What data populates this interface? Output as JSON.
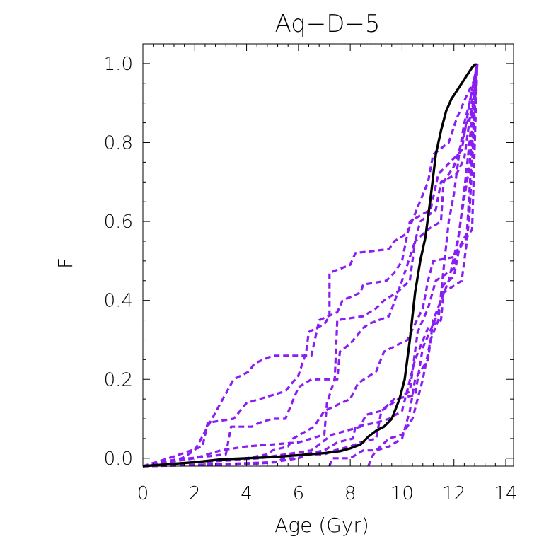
{
  "chart_data": {
    "type": "line",
    "title": "Aq−D−5",
    "xlabel": "Age (Gyr)",
    "ylabel": "F",
    "xlim": [
      0,
      14.3
    ],
    "ylim": [
      -0.02,
      1.05
    ],
    "xticks": [
      0,
      2,
      4,
      6,
      8,
      10,
      12,
      14
    ],
    "xtick_labels": [
      "0",
      "2",
      "4",
      "6",
      "8",
      "10",
      "12",
      "14"
    ],
    "yticks": [
      0.0,
      0.2,
      0.4,
      0.6,
      0.8,
      1.0
    ],
    "ytick_labels": [
      "0.0",
      "0.2",
      "0.4",
      "0.6",
      "0.8",
      "1.0"
    ],
    "grid": false,
    "colors": {
      "main": "#000000",
      "dashed": "#8a1ef2"
    },
    "series": [
      {
        "name": "main",
        "style": "solid",
        "x": [
          0.0,
          1.0,
          2.0,
          3.0,
          4.0,
          5.0,
          6.0,
          7.0,
          7.6,
          8.0,
          8.4,
          8.7,
          9.0,
          9.3,
          9.6,
          9.9,
          10.1,
          10.3,
          10.5,
          10.7,
          10.9,
          11.1,
          11.3,
          11.5,
          11.7,
          11.9,
          12.1,
          12.3,
          12.5,
          12.7,
          12.85
        ],
        "y": [
          -0.02,
          -0.015,
          -0.01,
          -0.003,
          0.0,
          0.003,
          0.008,
          0.013,
          0.018,
          0.025,
          0.035,
          0.055,
          0.07,
          0.08,
          0.1,
          0.15,
          0.2,
          0.3,
          0.42,
          0.5,
          0.56,
          0.66,
          0.77,
          0.83,
          0.88,
          0.91,
          0.93,
          0.95,
          0.97,
          0.99,
          1.0
        ]
      },
      {
        "name": "realization-1",
        "style": "dashed",
        "x": [
          0.0,
          1.0,
          2.3,
          2.5,
          3.5,
          4.0,
          5.5,
          6.0,
          6.3,
          6.4,
          6.7,
          7.0,
          7.2,
          7.2,
          8.0,
          8.2,
          9.5,
          9.7,
          10.2,
          10.5,
          11.0,
          11.2,
          11.8,
          12.1,
          12.5,
          12.8,
          12.9
        ],
        "y": [
          -0.02,
          0.0,
          0.03,
          0.09,
          0.1,
          0.14,
          0.17,
          0.21,
          0.27,
          0.32,
          0.33,
          0.34,
          0.36,
          0.47,
          0.49,
          0.52,
          0.53,
          0.55,
          0.57,
          0.62,
          0.7,
          0.77,
          0.8,
          0.86,
          0.92,
          0.96,
          1.0
        ]
      },
      {
        "name": "realization-2",
        "style": "dashed",
        "x": [
          0.0,
          1.5,
          2.0,
          2.5,
          3.0,
          3.5,
          4.1,
          4.3,
          5.0,
          5.3,
          6.5,
          6.8,
          7.5,
          7.7,
          8.4,
          8.5,
          9.4,
          9.7,
          10.0,
          10.3,
          11.1,
          11.4,
          12.3,
          12.6,
          12.9
        ],
        "y": [
          -0.02,
          0.0,
          0.02,
          0.08,
          0.14,
          0.2,
          0.22,
          0.24,
          0.26,
          0.26,
          0.26,
          0.35,
          0.37,
          0.4,
          0.42,
          0.44,
          0.45,
          0.47,
          0.5,
          0.6,
          0.63,
          0.72,
          0.78,
          0.9,
          1.0
        ]
      },
      {
        "name": "realization-3",
        "style": "dashed",
        "x": [
          0.0,
          1.8,
          2.5,
          3.2,
          3.4,
          4.2,
          4.5,
          5.0,
          5.5,
          6.0,
          6.5,
          7.5,
          7.6,
          8.0,
          8.5,
          8.7,
          9.5,
          10.0,
          10.5,
          10.7,
          11.3,
          11.5,
          12.1,
          12.4,
          12.9
        ],
        "y": [
          -0.02,
          0.0,
          0.005,
          0.01,
          0.08,
          0.08,
          0.09,
          0.1,
          0.1,
          0.18,
          0.2,
          0.2,
          0.27,
          0.29,
          0.33,
          0.34,
          0.36,
          0.45,
          0.55,
          0.6,
          0.63,
          0.7,
          0.72,
          0.76,
          1.0
        ]
      },
      {
        "name": "realization-4",
        "style": "dashed",
        "x": [
          0.0,
          1.0,
          2.0,
          3.0,
          4.0,
          5.0,
          6.0,
          6.5,
          7.0,
          7.1,
          7.4,
          7.5,
          8.5,
          9.0,
          9.3,
          9.8,
          10.3,
          10.5,
          11.0,
          11.5,
          11.6,
          12.0,
          12.3,
          12.5,
          12.7,
          12.9
        ],
        "y": [
          -0.02,
          -0.01,
          0.0,
          0.02,
          0.03,
          0.035,
          0.04,
          0.05,
          0.06,
          0.14,
          0.2,
          0.35,
          0.36,
          0.38,
          0.4,
          0.42,
          0.45,
          0.55,
          0.58,
          0.6,
          0.7,
          0.74,
          0.8,
          0.85,
          0.88,
          1.0
        ]
      },
      {
        "name": "realization-5",
        "style": "dashed",
        "x": [
          0.0,
          2.0,
          3.5,
          4.0,
          4.8,
          5.0,
          5.6,
          5.8,
          6.6,
          7.0,
          8.0,
          8.3,
          9.0,
          9.3,
          10.2,
          10.8,
          11.0,
          11.2,
          12.0,
          12.5,
          12.9
        ],
        "y": [
          -0.02,
          -0.01,
          -0.005,
          0.0,
          0.01,
          0.02,
          0.03,
          0.05,
          0.08,
          0.12,
          0.15,
          0.19,
          0.22,
          0.27,
          0.3,
          0.38,
          0.45,
          0.5,
          0.51,
          0.57,
          1.0
        ]
      },
      {
        "name": "realization-6",
        "style": "dashed",
        "x": [
          0.0,
          2.0,
          3.0,
          4.5,
          5.5,
          6.5,
          6.9,
          7.3,
          8.4,
          8.6,
          9.2,
          9.7,
          10.5,
          10.8,
          11.4,
          11.6,
          12.0,
          12.2,
          12.7,
          12.9
        ],
        "y": [
          -0.02,
          -0.01,
          -0.005,
          0.0,
          0.01,
          0.02,
          0.04,
          0.06,
          0.08,
          0.11,
          0.12,
          0.15,
          0.16,
          0.28,
          0.37,
          0.44,
          0.46,
          0.53,
          0.58,
          1.0
        ]
      },
      {
        "name": "realization-7",
        "style": "dashed",
        "x": [
          0.0,
          3.0,
          5.0,
          6.0,
          6.2,
          7.0,
          7.5,
          8.1,
          8.2,
          9.0,
          9.5,
          10.0,
          10.5,
          11.0,
          11.5,
          11.6,
          12.3,
          12.5,
          12.6,
          12.9
        ],
        "y": [
          -0.02,
          -0.015,
          -0.01,
          0.0,
          0.01,
          0.02,
          0.04,
          0.05,
          0.08,
          0.09,
          0.1,
          0.12,
          0.25,
          0.33,
          0.35,
          0.42,
          0.45,
          0.55,
          0.62,
          1.0
        ]
      },
      {
        "name": "realization-8",
        "style": "dashed",
        "x": [
          0.0,
          4.0,
          5.2,
          5.4,
          6.0,
          6.4,
          7.0,
          7.4,
          8.0,
          8.4,
          9.0,
          9.2,
          10.3,
          10.6,
          11.0,
          11.3,
          12.0,
          12.3,
          12.6,
          12.9
        ],
        "y": [
          -0.02,
          -0.015,
          -0.01,
          0.0,
          0.0,
          0.01,
          0.01,
          0.02,
          0.03,
          0.04,
          0.05,
          0.12,
          0.17,
          0.32,
          0.38,
          0.45,
          0.48,
          0.62,
          0.74,
          1.0
        ]
      },
      {
        "name": "realization-9",
        "style": "dashed",
        "x": [
          7.2,
          7.3,
          7.5,
          8.0,
          8.5,
          9.0,
          9.5,
          10.0,
          10.3,
          10.5,
          11.0,
          11.2,
          11.8,
          12.2,
          12.4,
          12.6,
          12.9
        ],
        "y": [
          -0.02,
          0.0,
          0.0,
          0.0,
          0.02,
          0.02,
          0.03,
          0.05,
          0.12,
          0.2,
          0.25,
          0.35,
          0.45,
          0.57,
          0.68,
          0.8,
          1.0
        ]
      },
      {
        "name": "realization-10",
        "style": "dashed",
        "x": [
          8.7,
          8.8,
          9.0,
          9.5,
          10.0,
          10.4,
          10.8,
          11.1,
          11.4,
          11.6,
          11.8,
          12.0,
          12.2,
          12.4,
          12.6,
          12.9
        ],
        "y": [
          -0.02,
          0.0,
          0.02,
          0.05,
          0.06,
          0.1,
          0.2,
          0.3,
          0.35,
          0.48,
          0.6,
          0.67,
          0.77,
          0.85,
          0.9,
          1.0
        ]
      }
    ]
  }
}
